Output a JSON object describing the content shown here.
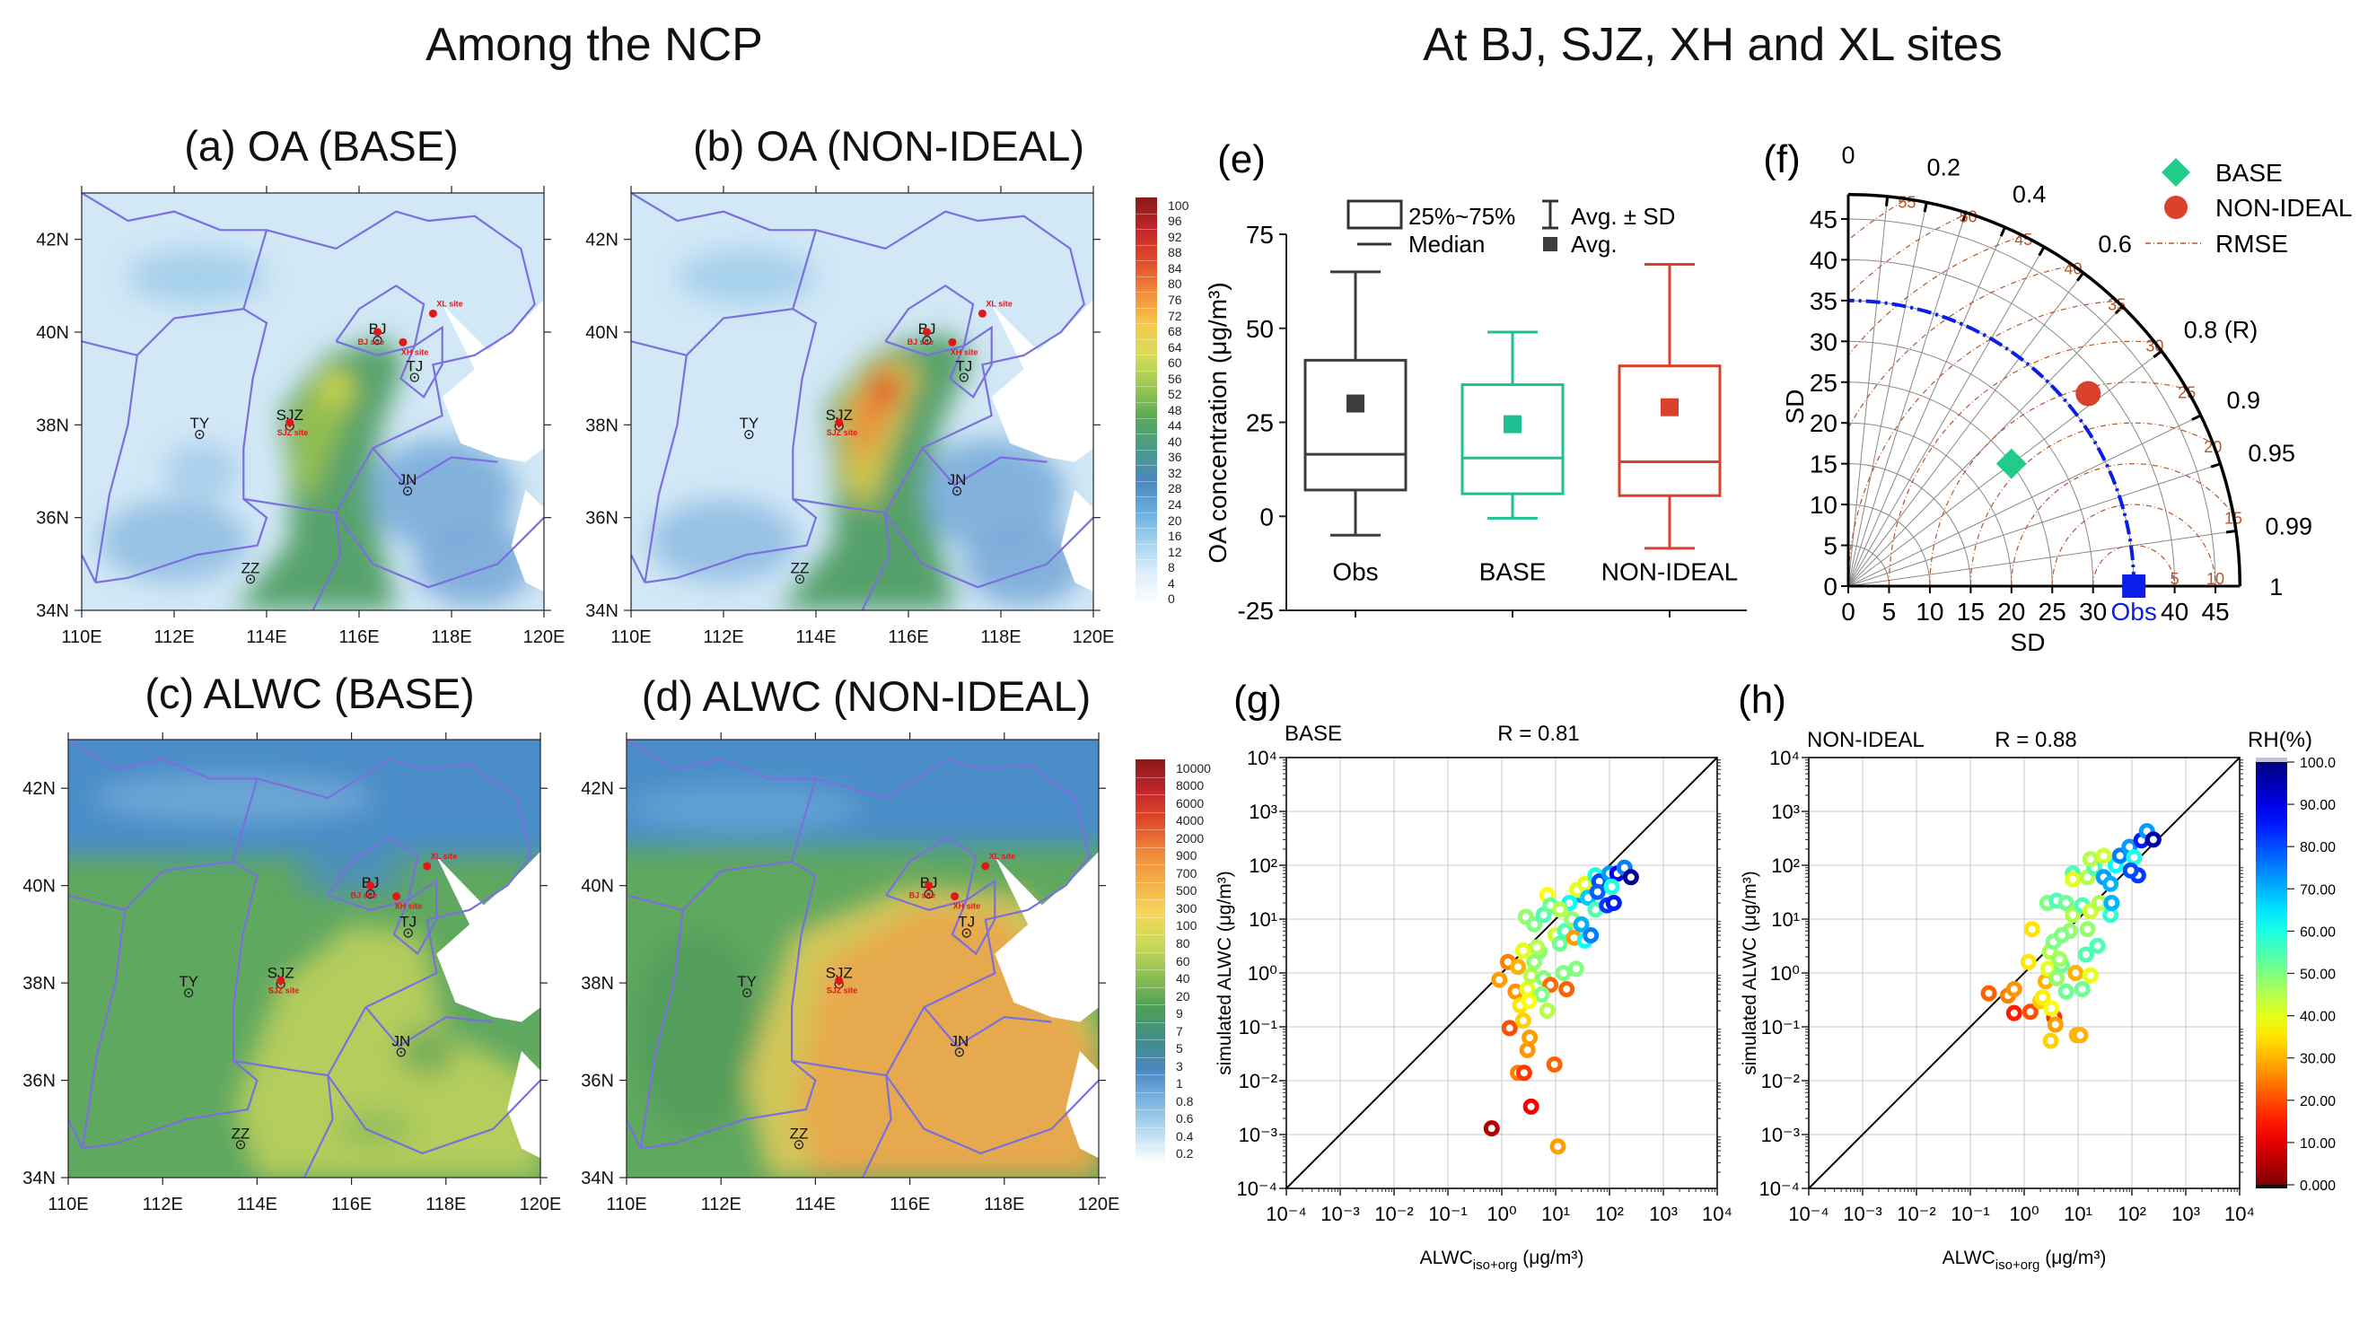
{
  "headers": {
    "left": "Among the NCP",
    "right": "At BJ, SJZ, XH and XL sites"
  },
  "maps": [
    {
      "label": "(a) OA (BASE)"
    },
    {
      "label": "(b) OA (NON-IDEAL)"
    },
    {
      "label": "(c) ALWC (BASE)"
    },
    {
      "label": "(d) ALWC (NON-IDEAL)"
    }
  ],
  "map_axes": {
    "lat_ticks": [
      {
        "value": 34,
        "label": "34N"
      },
      {
        "value": 36,
        "label": "36N"
      },
      {
        "value": 38,
        "label": "38N"
      },
      {
        "value": 40,
        "label": "40N"
      },
      {
        "value": 42,
        "label": "42N"
      }
    ],
    "lon_ticks": [
      {
        "value": 110,
        "label": "110E"
      },
      {
        "value": 112,
        "label": "112E"
      },
      {
        "value": 114,
        "label": "114E"
      },
      {
        "value": 116,
        "label": "116E"
      },
      {
        "value": 118,
        "label": "118E"
      },
      {
        "value": 120,
        "label": "120E"
      }
    ],
    "lon_range": [
      110,
      120
    ],
    "lat_range": [
      34,
      43
    ],
    "border_color": "#7b6fe0"
  },
  "cities": [
    {
      "name": "TY",
      "lon": 112.55,
      "lat": 37.87
    },
    {
      "name": "SJZ",
      "lon": 114.5,
      "lat": 38.05
    },
    {
      "name": "BJ",
      "lon": 116.4,
      "lat": 39.9
    },
    {
      "name": "TJ",
      "lon": 117.2,
      "lat": 39.1
    },
    {
      "name": "JN",
      "lon": 117.05,
      "lat": 36.65
    },
    {
      "name": "ZZ",
      "lon": 113.65,
      "lat": 34.75
    }
  ],
  "sites": [
    {
      "label": "BJ site",
      "lon": 116.4,
      "lat": 40.0
    },
    {
      "label": "XH site",
      "lon": 116.95,
      "lat": 39.78
    },
    {
      "label": "XL site",
      "lon": 117.6,
      "lat": 40.4
    },
    {
      "label": "SJZ site",
      "lon": 114.5,
      "lat": 38.05
    }
  ],
  "colorbars": {
    "oa": {
      "labels": [
        "100",
        "96",
        "92",
        "88",
        "84",
        "80",
        "76",
        "72",
        "68",
        "64",
        "60",
        "56",
        "52",
        "48",
        "44",
        "40",
        "36",
        "32",
        "28",
        "24",
        "20",
        "16",
        "12",
        "8",
        "4",
        "0"
      ],
      "colors": [
        "#8b1a1a",
        "#c0262a",
        "#e04a2a",
        "#f08a3a",
        "#f5c84a",
        "#d8dc5a",
        "#9cc850",
        "#5aa85a",
        "#4a9a8a",
        "#4a88c0",
        "#6aaede",
        "#a8d4f0",
        "#e0f0fb",
        "#ffffff"
      ]
    },
    "alwc": {
      "labels": [
        "10000",
        "8000",
        "6000",
        "4000",
        "2000",
        "900",
        "700",
        "500",
        "300",
        "100",
        "80",
        "60",
        "40",
        "20",
        "9",
        "7",
        "5",
        "3",
        "1",
        "0.8",
        "0.6",
        "0.4",
        "0.2"
      ],
      "colors": [
        "#8b1a1a",
        "#c0262a",
        "#e04a2a",
        "#f08a3a",
        "#f5b04a",
        "#f5d85a",
        "#c8d85a",
        "#8cc050",
        "#4f9f58",
        "#3f8f88",
        "#4a86c0",
        "#7ab4e0",
        "#b8dcf2",
        "#ffffff"
      ]
    }
  },
  "chart_data": [
    {
      "panel": "(e)",
      "type": "box",
      "ylabel": "OA concentration (μg/m³)",
      "ylim": [
        -25,
        75
      ],
      "yticks": [
        75,
        50,
        25,
        0,
        -25
      ],
      "legend": {
        "box": "25%~75%",
        "median": "Median",
        "sd": "Avg. ± SD",
        "avg": "Avg."
      },
      "categories": [
        "Obs",
        "BASE",
        "NON-IDEAL"
      ],
      "colors": [
        "#3c3c3c",
        "#1fbf94",
        "#d9412b"
      ],
      "series": [
        {
          "category": "Obs",
          "q1": 7,
          "median": 16.5,
          "q3": 41.5,
          "avg": 30,
          "sd_low": -5,
          "sd_high": 65
        },
        {
          "category": "BASE",
          "q1": 6,
          "median": 15.5,
          "q3": 35,
          "avg": 24.5,
          "sd_low": -0.5,
          "sd_high": 49
        },
        {
          "category": "NON-IDEAL",
          "q1": 5.5,
          "median": 14.5,
          "q3": 40,
          "avg": 29,
          "sd_low": -8.5,
          "sd_high": 67
        }
      ]
    },
    {
      "panel": "(f)",
      "type": "taylor",
      "xlabel": "SD",
      "ylabel": "SD",
      "sd_ticks": [
        0,
        5,
        10,
        15,
        20,
        25,
        30,
        35,
        40,
        45
      ],
      "sd_max": 48,
      "correlation_labels": [
        {
          "value": 0,
          "label": "0"
        },
        {
          "value": 0.2,
          "label": "0.2"
        },
        {
          "value": 0.4,
          "label": "0.4"
        },
        {
          "value": 0.6,
          "label": "0.6"
        },
        {
          "value": 0.8,
          "label": "0.8 (R)"
        },
        {
          "value": 0.9,
          "label": "0.9"
        },
        {
          "value": 0.95,
          "label": "0.95"
        },
        {
          "value": 0.99,
          "label": "0.99"
        },
        {
          "value": 1,
          "label": "1"
        }
      ],
      "rmse_levels": [
        5,
        10,
        15,
        20,
        25,
        30,
        35,
        40,
        45,
        50,
        55
      ],
      "reference": {
        "label": "Obs",
        "sd": 35,
        "color": "#0a1ee8"
      },
      "points": [
        {
          "name": "BASE",
          "sd": 25,
          "r": 0.8,
          "marker": "diamond",
          "color": "#22cc88"
        },
        {
          "name": "NON-IDEAL",
          "sd": 37.7,
          "r": 0.78,
          "marker": "circle",
          "color": "#d9412b"
        }
      ],
      "legend_rmse": "RMSE",
      "rmse_color": "#b5552a"
    },
    {
      "panel": "(g)",
      "type": "scatter",
      "scale": "log",
      "case_label": "BASE",
      "r_label": "R = 0.81",
      "xlim": [
        0.0001,
        10000
      ],
      "ylim": [
        0.0001,
        10000
      ],
      "tick_exponents": [
        -4,
        -3,
        -2,
        -1,
        0,
        1,
        2,
        3,
        4
      ],
      "tick_labels": [
        "10⁻⁴",
        "10⁻³",
        "10⁻²",
        "10⁻¹",
        "10⁰",
        "10¹",
        "10²",
        "10³",
        "10⁴"
      ],
      "ylabel": "simulated ALWC  (μg/m³)",
      "xlabel": {
        "main": "ALWC",
        "sub": "iso+org",
        "unit": " (μg/m³)"
      },
      "points": [
        [
          0.65,
          0.0013,
          5
        ],
        [
          3.5,
          0.0033,
          12
        ],
        [
          11,
          0.0006,
          28
        ],
        [
          2,
          0.014,
          25
        ],
        [
          2.6,
          0.014,
          18
        ],
        [
          9.5,
          0.02,
          22
        ],
        [
          3,
          0.037,
          27
        ],
        [
          3.3,
          0.063,
          28
        ],
        [
          1.4,
          0.095,
          20
        ],
        [
          0.9,
          0.75,
          28
        ],
        [
          1.3,
          1.6,
          25
        ],
        [
          2,
          1.3,
          30
        ],
        [
          1.8,
          0.45,
          27
        ],
        [
          2.2,
          0.25,
          35
        ],
        [
          2.5,
          0.13,
          33
        ],
        [
          3,
          0.5,
          40
        ],
        [
          3.5,
          0.9,
          45
        ],
        [
          4,
          1.6,
          48
        ],
        [
          5,
          2.5,
          50
        ],
        [
          6,
          0.8,
          50
        ],
        [
          7,
          0.2,
          45
        ],
        [
          8,
          0.6,
          23
        ],
        [
          14,
          1.0,
          50
        ],
        [
          24,
          1.2,
          50
        ],
        [
          16,
          0.5,
          22
        ],
        [
          2.8,
          11,
          48
        ],
        [
          4,
          8,
          50
        ],
        [
          6,
          12,
          55
        ],
        [
          7,
          28,
          38
        ],
        [
          8,
          18,
          52
        ],
        [
          10,
          5,
          42
        ],
        [
          12,
          3.5,
          52
        ],
        [
          15,
          6,
          55
        ],
        [
          20,
          10,
          48
        ],
        [
          22,
          4.5,
          28
        ],
        [
          30,
          8,
          70
        ],
        [
          35,
          4,
          62
        ],
        [
          45,
          5,
          75
        ],
        [
          30,
          28,
          72
        ],
        [
          25,
          35,
          40
        ],
        [
          35,
          45,
          40
        ],
        [
          40,
          25,
          68
        ],
        [
          55,
          15,
          55
        ],
        [
          55,
          65,
          60
        ],
        [
          65,
          50,
          80
        ],
        [
          60,
          32,
          78
        ],
        [
          100,
          70,
          72
        ],
        [
          90,
          18,
          82
        ],
        [
          120,
          20,
          85
        ],
        [
          140,
          70,
          88
        ],
        [
          190,
          90,
          75
        ],
        [
          250,
          60,
          98
        ],
        [
          110,
          40,
          60
        ],
        [
          18,
          20,
          62
        ],
        [
          12,
          15,
          45
        ],
        [
          4.5,
          3,
          45
        ],
        [
          2.5,
          2.6,
          40
        ],
        [
          5.5,
          0.4,
          50
        ],
        [
          3.2,
          0.3,
          38
        ]
      ]
    },
    {
      "panel": "(h)",
      "type": "scatter",
      "scale": "log",
      "case_label": "NON-IDEAL",
      "r_label": "R = 0.88",
      "xlim": [
        0.0001,
        10000
      ],
      "ylim": [
        0.0001,
        10000
      ],
      "tick_exponents": [
        -4,
        -3,
        -2,
        -1,
        0,
        1,
        2,
        3,
        4
      ],
      "tick_labels": [
        "10⁻⁴",
        "10⁻³",
        "10⁻²",
        "10⁻¹",
        "10⁰",
        "10¹",
        "10²",
        "10³",
        "10⁴"
      ],
      "ylabel": "simulated ALWC  (μg/m³)",
      "xlabel": {
        "main": "ALWC",
        "sub": "iso+org",
        "unit": " (μg/m³)"
      },
      "colorbar": {
        "title": "RH(%)",
        "labels": [
          "100.0",
          "90.00",
          "80.00",
          "70.00",
          "60.00",
          "50.00",
          "40.00",
          "30.00",
          "20.00",
          "10.00",
          "0.000"
        ],
        "range": [
          0,
          100
        ]
      },
      "points": [
        [
          0.22,
          0.42,
          22
        ],
        [
          0.5,
          0.38,
          25
        ],
        [
          0.65,
          0.5,
          27
        ],
        [
          0.65,
          0.18,
          15
        ],
        [
          1.3,
          0.19,
          20
        ],
        [
          3.6,
          0.15,
          17
        ],
        [
          3.8,
          0.11,
          28
        ],
        [
          3.1,
          0.055,
          33
        ],
        [
          9.5,
          0.07,
          30
        ],
        [
          11,
          0.07,
          30
        ],
        [
          1.2,
          1.6,
          35
        ],
        [
          1.4,
          6.5,
          35
        ],
        [
          2,
          0.3,
          32
        ],
        [
          2.5,
          0.7,
          30
        ],
        [
          2.8,
          1.2,
          40
        ],
        [
          3,
          2.5,
          45
        ],
        [
          3.5,
          3.8,
          50
        ],
        [
          4,
          0.8,
          48
        ],
        [
          5,
          1.4,
          52
        ],
        [
          6,
          0.45,
          52
        ],
        [
          7,
          6,
          48
        ],
        [
          9,
          1.0,
          30
        ],
        [
          12,
          0.5,
          52
        ],
        [
          14,
          2.2,
          55
        ],
        [
          17,
          0.9,
          40
        ],
        [
          23,
          3.2,
          55
        ],
        [
          15,
          6.5,
          48
        ],
        [
          2.7,
          20,
          50
        ],
        [
          4,
          22,
          55
        ],
        [
          6,
          20,
          52
        ],
        [
          8,
          12,
          45
        ],
        [
          12,
          18,
          55
        ],
        [
          17,
          14,
          42
        ],
        [
          25,
          20,
          45
        ],
        [
          40,
          12,
          58
        ],
        [
          42,
          20,
          70
        ],
        [
          8,
          70,
          55
        ],
        [
          8,
          55,
          40
        ],
        [
          15,
          60,
          45
        ],
        [
          20,
          90,
          55
        ],
        [
          30,
          60,
          72
        ],
        [
          40,
          45,
          70
        ],
        [
          50,
          100,
          62
        ],
        [
          60,
          150,
          75
        ],
        [
          90,
          220,
          72
        ],
        [
          110,
          140,
          60
        ],
        [
          130,
          65,
          82
        ],
        [
          95,
          80,
          80
        ],
        [
          150,
          290,
          85
        ],
        [
          190,
          430,
          72
        ],
        [
          250,
          300,
          96
        ],
        [
          17,
          130,
          45
        ],
        [
          30,
          150,
          42
        ],
        [
          2.2,
          0.35,
          36
        ],
        [
          3.2,
          0.22,
          38
        ],
        [
          5,
          5,
          50
        ],
        [
          4.5,
          1.8,
          47
        ]
      ]
    }
  ]
}
